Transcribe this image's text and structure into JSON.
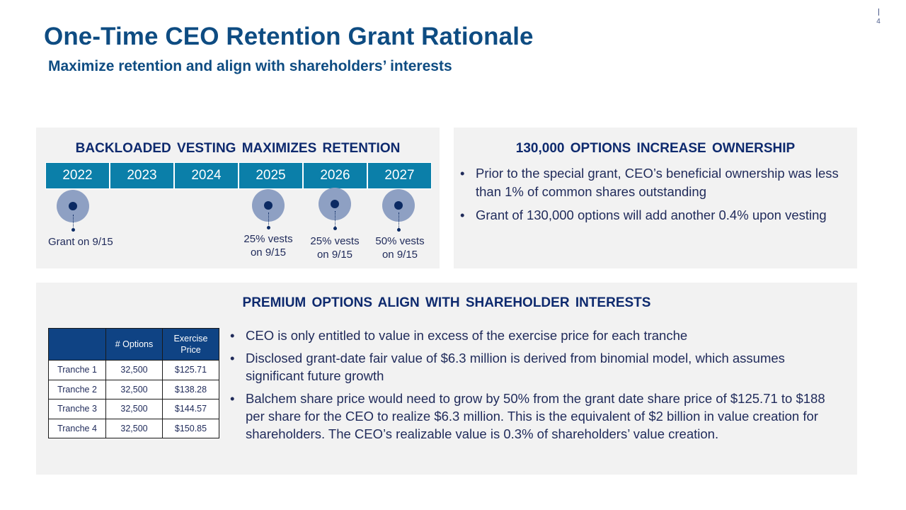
{
  "page_number": "4",
  "title": "One-Time CEO Retention Grant Rationale",
  "subtitle": "Maximize retention and align with shareholders’ interests",
  "vesting": {
    "heading": "BACKLOADED VESTING MAXIMIZES RETENTION",
    "years": [
      "2022",
      "2023",
      "2024",
      "2025",
      "2026",
      "2027"
    ],
    "milestones": [
      {
        "label": "Grant on 9/15"
      },
      {
        "label_line1": "25% vests",
        "label_line2": "on 9/15"
      },
      {
        "label_line1": "25% vests",
        "label_line2": "on 9/15"
      },
      {
        "label_line1": "50% vests",
        "label_line2": "on 9/15"
      }
    ]
  },
  "ownership": {
    "heading": "130,000 OPTIONS INCREASE OWNERSHIP",
    "bullets": [
      "Prior to the special grant, CEO’s beneficial ownership was less than 1% of common shares outstanding",
      "Grant of 130,000 options will add another 0.4% upon vesting"
    ]
  },
  "premium": {
    "heading": "PREMIUM OPTIONS ALIGN WITH SHAREHOLDER INTERESTS",
    "table": {
      "headers": [
        "",
        "# Options",
        "Exercise Price"
      ],
      "rows": [
        [
          "Tranche 1",
          "32,500",
          "$125.71"
        ],
        [
          "Tranche 2",
          "32,500",
          "$138.28"
        ],
        [
          "Tranche 3",
          "32,500",
          "$144.57"
        ],
        [
          "Tranche 4",
          "32,500",
          "$150.85"
        ]
      ]
    },
    "bullets": [
      "CEO is only entitled to value in excess of the exercise price for each tranche",
      "Disclosed grant-date fair value of $6.3 million is derived from binomial model, which assumes significant future growth",
      "Balchem share price would need to grow by 50% from the grant date share price of $125.71 to $188 per share for the CEO to realize $6.3 million. This is the equivalent of $2 billion in value creation for shareholders. The CEO’s realizable value is 0.3% of shareholders’ value creation."
    ]
  }
}
